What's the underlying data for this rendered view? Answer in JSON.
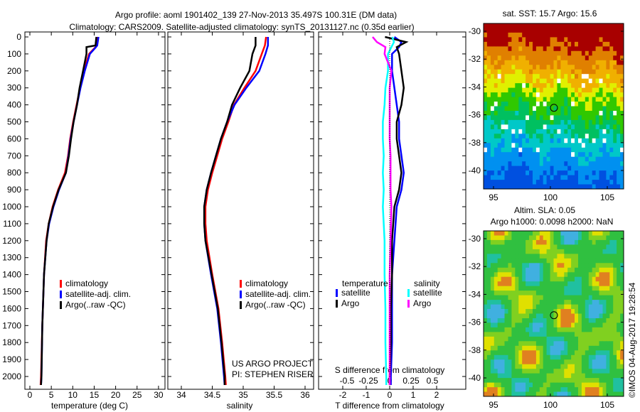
{
  "title_line1": "Argo profile: aoml 1901402_139 27-Nov-2013 35.497S 100.31E (DM data)",
  "title_line2": "Climatology: CARS2009. Satellite-adjusted climatology: synTS_20131127.nc (0.35d earlier)",
  "depth_ticks": [
    "0",
    "100",
    "200",
    "300",
    "400",
    "500",
    "600",
    "700",
    "800",
    "900",
    "1000",
    "1100",
    "1200",
    "1300",
    "1400",
    "1500",
    "1600",
    "1700",
    "1800",
    "1900",
    "2000"
  ],
  "credit": "©IMOS 04-Aug-2017 19:28:54",
  "project_line1": "US ARGO PROJECT",
  "project_line2": "PI: STEPHEN RISER",
  "colors": {
    "climatology": "#ff0000",
    "satellite": "#0000ff",
    "argo": "#000000",
    "sal_satellite": "#00ffff",
    "sal_argo": "#ff00ff"
  },
  "chart_data": [
    {
      "type": "line",
      "name": "temperature",
      "xlabel": "temperature (deg C)",
      "ylabel": "depth",
      "xlim": [
        -2,
        32
      ],
      "ylim": [
        2050,
        0
      ],
      "xticks": [
        "0",
        "5",
        "10",
        "15",
        "20",
        "25",
        "30"
      ],
      "legend": [
        "climatology",
        "satellite-adj. clim.",
        "Argo(..raw -QC)"
      ],
      "legend_placement": "lower-right",
      "depth": [
        0,
        50,
        60,
        100,
        200,
        300,
        400,
        500,
        600,
        700,
        800,
        900,
        1000,
        1100,
        1200,
        1400,
        1700,
        2000,
        2050
      ],
      "series": [
        {
          "name": "climatology",
          "values": [
            15.8,
            15.5,
            15.3,
            13.8,
            12.6,
            11.7,
            10.9,
            10.1,
            9.4,
            8.9,
            8.2,
            6.6,
            5.3,
            4.4,
            3.8,
            3.3,
            2.9,
            2.6,
            2.5
          ]
        },
        {
          "name": "satellite-adj. clim.",
          "values": [
            16,
            15.7,
            15.4,
            14.0,
            12.8,
            11.8,
            11.0,
            10.2,
            9.5,
            9.0,
            8.4,
            6.8,
            5.5,
            4.5,
            3.9,
            3.3,
            2.9,
            2.7,
            2.6
          ]
        },
        {
          "name": "Argo(..raw -QC)",
          "values": [
            15.5,
            15.3,
            13.2,
            13.2,
            12.4,
            11.6,
            11.0,
            10.2,
            9.6,
            9.1,
            8.4,
            6.7,
            5.4,
            4.4,
            3.9,
            3.3,
            2.9,
            2.7,
            2.6
          ]
        }
      ]
    },
    {
      "type": "line",
      "name": "salinity",
      "xlabel": "salinity",
      "ylabel": "depth",
      "xlim": [
        33.75,
        36.15
      ],
      "ylim": [
        2050,
        0
      ],
      "xticks": [
        "34",
        "34.5",
        "35",
        "35.5",
        "36"
      ],
      "legend": [
        "climatology",
        "satellite-adj. clim.",
        "Argo(..raw -QC)"
      ],
      "legend_placement": "lower-right",
      "depth": [
        0,
        50,
        100,
        200,
        300,
        400,
        500,
        600,
        700,
        800,
        900,
        1000,
        1100,
        1200,
        1400,
        1600,
        1800,
        2000,
        2050
      ],
      "series": [
        {
          "name": "climatology",
          "values": [
            35.37,
            35.35,
            35.3,
            35.2,
            35.02,
            34.85,
            34.76,
            34.66,
            34.58,
            34.5,
            34.43,
            34.39,
            34.39,
            34.41,
            34.5,
            34.6,
            34.66,
            34.71,
            34.72
          ]
        },
        {
          "name": "satellite-adj. clim.",
          "values": [
            35.4,
            35.4,
            35.36,
            35.26,
            35.05,
            34.86,
            34.74,
            34.64,
            34.56,
            34.48,
            34.41,
            34.37,
            34.37,
            34.39,
            34.48,
            34.58,
            34.64,
            34.69,
            34.7
          ]
        },
        {
          "name": "Argo(..raw -QC)",
          "values": [
            35.2,
            35.2,
            35.15,
            35.1,
            34.95,
            34.82,
            34.74,
            34.64,
            34.56,
            34.48,
            34.41,
            34.37,
            34.37,
            34.39,
            34.49,
            34.59,
            34.65,
            34.7,
            34.7
          ]
        }
      ]
    },
    {
      "type": "line",
      "name": "difference",
      "xlabel": "T difference from climatology",
      "x2label": "S difference from climatology",
      "xlim": [
        -3,
        3
      ],
      "ylim": [
        2050,
        0
      ],
      "xticks": [
        "-2",
        "-1",
        "0",
        "1",
        "2"
      ],
      "x2ticks": [
        "-0.5",
        "-0.25",
        "0",
        "0.25",
        "0.5"
      ],
      "legend_titles": [
        "temperature",
        "salinity"
      ],
      "legend": [
        "satellite",
        "Argo",
        "satellite",
        "Argo"
      ],
      "depth": [
        0,
        30,
        60,
        100,
        200,
        300,
        400,
        500,
        600,
        700,
        800,
        900,
        1000,
        1200,
        1400,
        1600,
        1800,
        2000,
        2050
      ],
      "series": [
        {
          "name": "T satellite",
          "values": [
            0.2,
            0.5,
            0.4,
            0.1,
            0.1,
            0.2,
            0.3,
            0.4,
            0.4,
            0.5,
            0.6,
            0.5,
            0.3,
            0.2,
            0.1,
            0.1,
            0.1,
            0.05,
            0.05
          ]
        },
        {
          "name": "T Argo",
          "values": [
            -0.2,
            0.7,
            0.3,
            0.4,
            0.5,
            0.6,
            0.5,
            0.3,
            0.3,
            0.4,
            0.5,
            0.4,
            0.2,
            0.1,
            0.1,
            0.05,
            0.05,
            0.0,
            0.0
          ]
        },
        {
          "name": "S satellite",
          "values": [
            0.03,
            0.05,
            0.02,
            -0.02,
            -0.02,
            -0.05,
            -0.06,
            -0.08,
            -0.08,
            -0.07,
            -0.08,
            -0.07,
            -0.08,
            -0.06,
            -0.06,
            -0.05,
            -0.05,
            -0.04,
            -0.04
          ]
        },
        {
          "name": "S Argo",
          "values": [
            -0.2,
            -0.15,
            -0.05,
            -0.06,
            0.02,
            0.0,
            0.0,
            0.0,
            0.0,
            0.01,
            0.01,
            0.01,
            0.02,
            0.01,
            0.0,
            0.0,
            0.0,
            0.0,
            0.0
          ]
        }
      ]
    },
    {
      "type": "heatmap",
      "name": "sst-map",
      "title": "sat. SST: 15.7 Argo: 15.6",
      "xlim": [
        94.1,
        106.4
      ],
      "ylim": [
        -41.4,
        -29.4
      ],
      "xticks": [
        "95",
        "100",
        "105"
      ],
      "yticks": [
        "-30",
        "-32",
        "-34",
        "-36",
        "-38",
        "-40"
      ],
      "marker": [
        100.31,
        -35.497
      ]
    },
    {
      "type": "heatmap",
      "name": "sla-map",
      "title_line1": "Altim. SLA: 0.05",
      "title_line2": "Argo h1000: 0.0098 h2000: NaN",
      "xlim": [
        94.1,
        106.4
      ],
      "ylim": [
        -41.4,
        -29.4
      ],
      "xticks": [
        "95",
        "100",
        "105"
      ],
      "yticks": [
        "-30",
        "-32",
        "-34",
        "-36",
        "-38",
        "-40"
      ],
      "marker": [
        100.31,
        -35.497
      ]
    }
  ]
}
